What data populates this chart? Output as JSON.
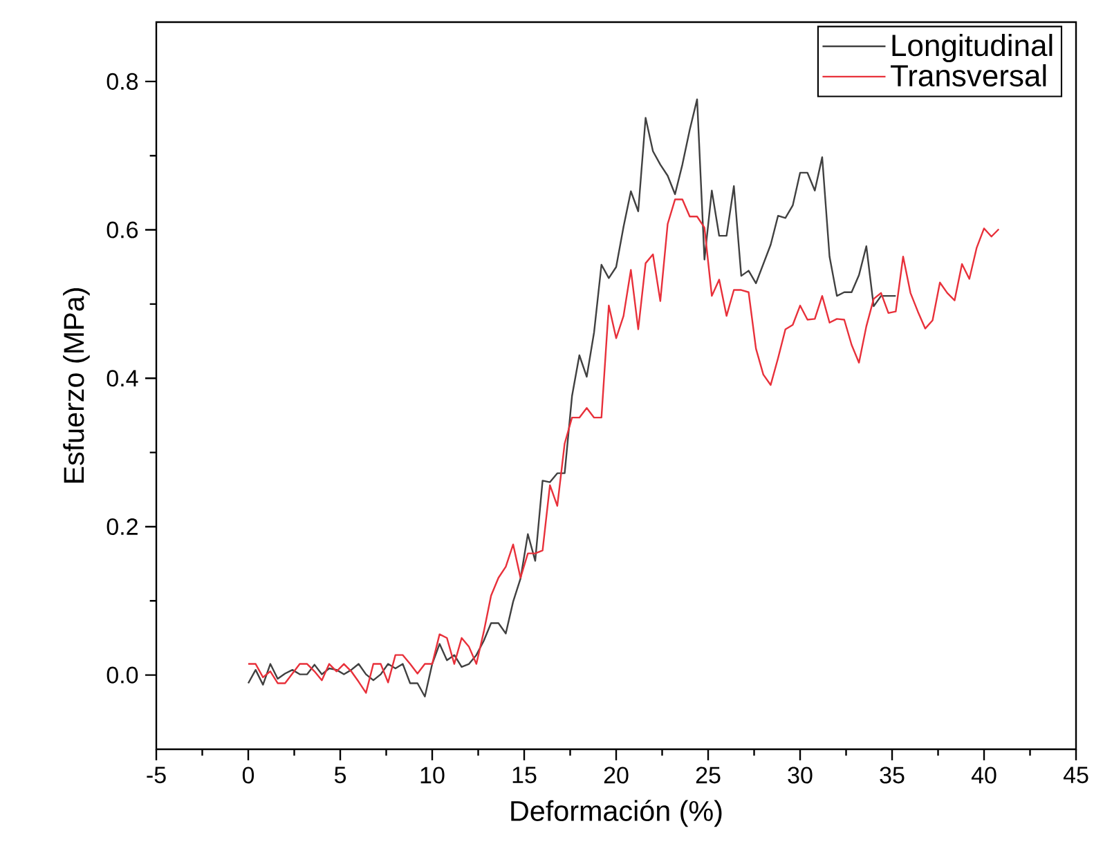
{
  "chart_data": {
    "type": "line",
    "xlabel": "Deformación (%)",
    "ylabel": "Esfuerzo (MPa)",
    "xlim": [
      -5,
      45
    ],
    "ylim": [
      -0.1,
      0.88
    ],
    "xticks": [
      -5,
      0,
      5,
      10,
      15,
      20,
      25,
      30,
      35,
      40,
      45
    ],
    "yticks": [
      {
        "value": 0,
        "label": "0.0"
      },
      {
        "value": 0.2,
        "label": "0.2"
      },
      {
        "value": 0.4,
        "label": "0.4"
      },
      {
        "value": 0.6,
        "label": "0.6"
      },
      {
        "value": 0.8,
        "label": "0.8"
      }
    ],
    "legend": "top right",
    "line_style": "solid",
    "marker": "none",
    "series": [
      {
        "name": "Longitudinal",
        "color": "#404040",
        "x": [
          0,
          0.4,
          0.8,
          1.2,
          1.6,
          2,
          2.4,
          2.8,
          3.2,
          3.6,
          4,
          4.4,
          4.8,
          5.2,
          5.6,
          6,
          6.4,
          6.8,
          7.2,
          7.6,
          8,
          8.4,
          8.8,
          9.2,
          9.6,
          10,
          10.4,
          10.8,
          11.2,
          11.6,
          12,
          12.4,
          12.8,
          13.2,
          13.6,
          14,
          14.4,
          14.8,
          15.2,
          15.6,
          16,
          16.4,
          16.8,
          17.2,
          17.6,
          18,
          18.4,
          18.8,
          19.2,
          19.6,
          20,
          20.4,
          20.8,
          21.2,
          21.6,
          22,
          22.4,
          22.8,
          23.2,
          23.6,
          24,
          24.4,
          24.8,
          25.2,
          25.6,
          26,
          26.4,
          26.8,
          27.2,
          27.6,
          28,
          28.4,
          28.8,
          29.2,
          29.6,
          30,
          30.4,
          30.8,
          31.2,
          31.6,
          32,
          32.4,
          32.8,
          33.2,
          33.6,
          34,
          34.4,
          34.8,
          35.2
        ],
        "values": [
          -0.011,
          0.007,
          -0.013,
          0.015,
          -0.005,
          0.002,
          0.007,
          0.001,
          0.001,
          0.014,
          0.001,
          0.009,
          0.007,
          0.001,
          0.007,
          0.015,
          0.001,
          -0.007,
          0.001,
          0.015,
          0.009,
          0.015,
          -0.011,
          -0.011,
          -0.029,
          0.015,
          0.042,
          0.02,
          0.027,
          0.011,
          0.015,
          0.027,
          0.046,
          0.07,
          0.07,
          0.056,
          0.099,
          0.13,
          0.19,
          0.154,
          0.262,
          0.26,
          0.272,
          0.272,
          0.376,
          0.431,
          0.402,
          0.462,
          0.553,
          0.535,
          0.55,
          0.604,
          0.652,
          0.625,
          0.751,
          0.706,
          0.688,
          0.673,
          0.648,
          0.688,
          0.735,
          0.776,
          0.56,
          0.653,
          0.592,
          0.592,
          0.659,
          0.538,
          0.545,
          0.528,
          0.554,
          0.58,
          0.619,
          0.616,
          0.633,
          0.677,
          0.677,
          0.653,
          0.698,
          0.564,
          0.511,
          0.516,
          0.516,
          0.539,
          0.578,
          0.497,
          0.511,
          0.511,
          0.511
        ]
      },
      {
        "name": "Transversal",
        "color": "#e8303a",
        "x": [
          0,
          0.4,
          0.8,
          1.2,
          1.6,
          2,
          2.4,
          2.8,
          3.2,
          3.6,
          4,
          4.4,
          4.8,
          5.2,
          5.6,
          6,
          6.4,
          6.8,
          7.2,
          7.6,
          8,
          8.4,
          8.8,
          9.2,
          9.6,
          10,
          10.4,
          10.8,
          11.2,
          11.6,
          12,
          12.4,
          12.8,
          13.2,
          13.6,
          14,
          14.4,
          14.8,
          15.2,
          15.6,
          16,
          16.4,
          16.8,
          17.2,
          17.6,
          18,
          18.4,
          18.8,
          19.2,
          19.6,
          20,
          20.4,
          20.8,
          21.2,
          21.6,
          22,
          22.4,
          22.8,
          23.2,
          23.6,
          24,
          24.4,
          24.8,
          25.2,
          25.6,
          26,
          26.4,
          26.8,
          27.2,
          27.6,
          28,
          28.4,
          28.8,
          29.2,
          29.6,
          30,
          30.4,
          30.8,
          31.2,
          31.6,
          32,
          32.4,
          32.8,
          33.2,
          33.6,
          34,
          34.4,
          34.8,
          35.2,
          35.6,
          36,
          36.4,
          36.8,
          37.2,
          37.6,
          38,
          38.4,
          38.8,
          39.2,
          39.6,
          40,
          40.4,
          40.8
        ],
        "values": [
          0.015,
          0.015,
          -0.003,
          0.005,
          -0.011,
          -0.011,
          0.002,
          0.015,
          0.015,
          0.005,
          -0.007,
          0.015,
          0.005,
          0.015,
          0.005,
          -0.009,
          -0.024,
          0.015,
          0.015,
          -0.01,
          0.027,
          0.027,
          0.015,
          0.002,
          0.015,
          0.015,
          0.055,
          0.05,
          0.015,
          0.05,
          0.038,
          0.015,
          0.058,
          0.107,
          0.131,
          0.146,
          0.176,
          0.131,
          0.164,
          0.164,
          0.168,
          0.256,
          0.228,
          0.312,
          0.347,
          0.347,
          0.36,
          0.347,
          0.347,
          0.498,
          0.454,
          0.484,
          0.546,
          0.466,
          0.555,
          0.567,
          0.504,
          0.608,
          0.641,
          0.641,
          0.618,
          0.618,
          0.603,
          0.511,
          0.533,
          0.484,
          0.519,
          0.519,
          0.516,
          0.44,
          0.405,
          0.391,
          0.427,
          0.466,
          0.472,
          0.498,
          0.479,
          0.48,
          0.511,
          0.475,
          0.48,
          0.479,
          0.445,
          0.421,
          0.47,
          0.507,
          0.515,
          0.488,
          0.49,
          0.564,
          0.515,
          0.49,
          0.467,
          0.478,
          0.529,
          0.515,
          0.505,
          0.554,
          0.534,
          0.576,
          0.602,
          0.591,
          0.601
        ]
      }
    ]
  }
}
